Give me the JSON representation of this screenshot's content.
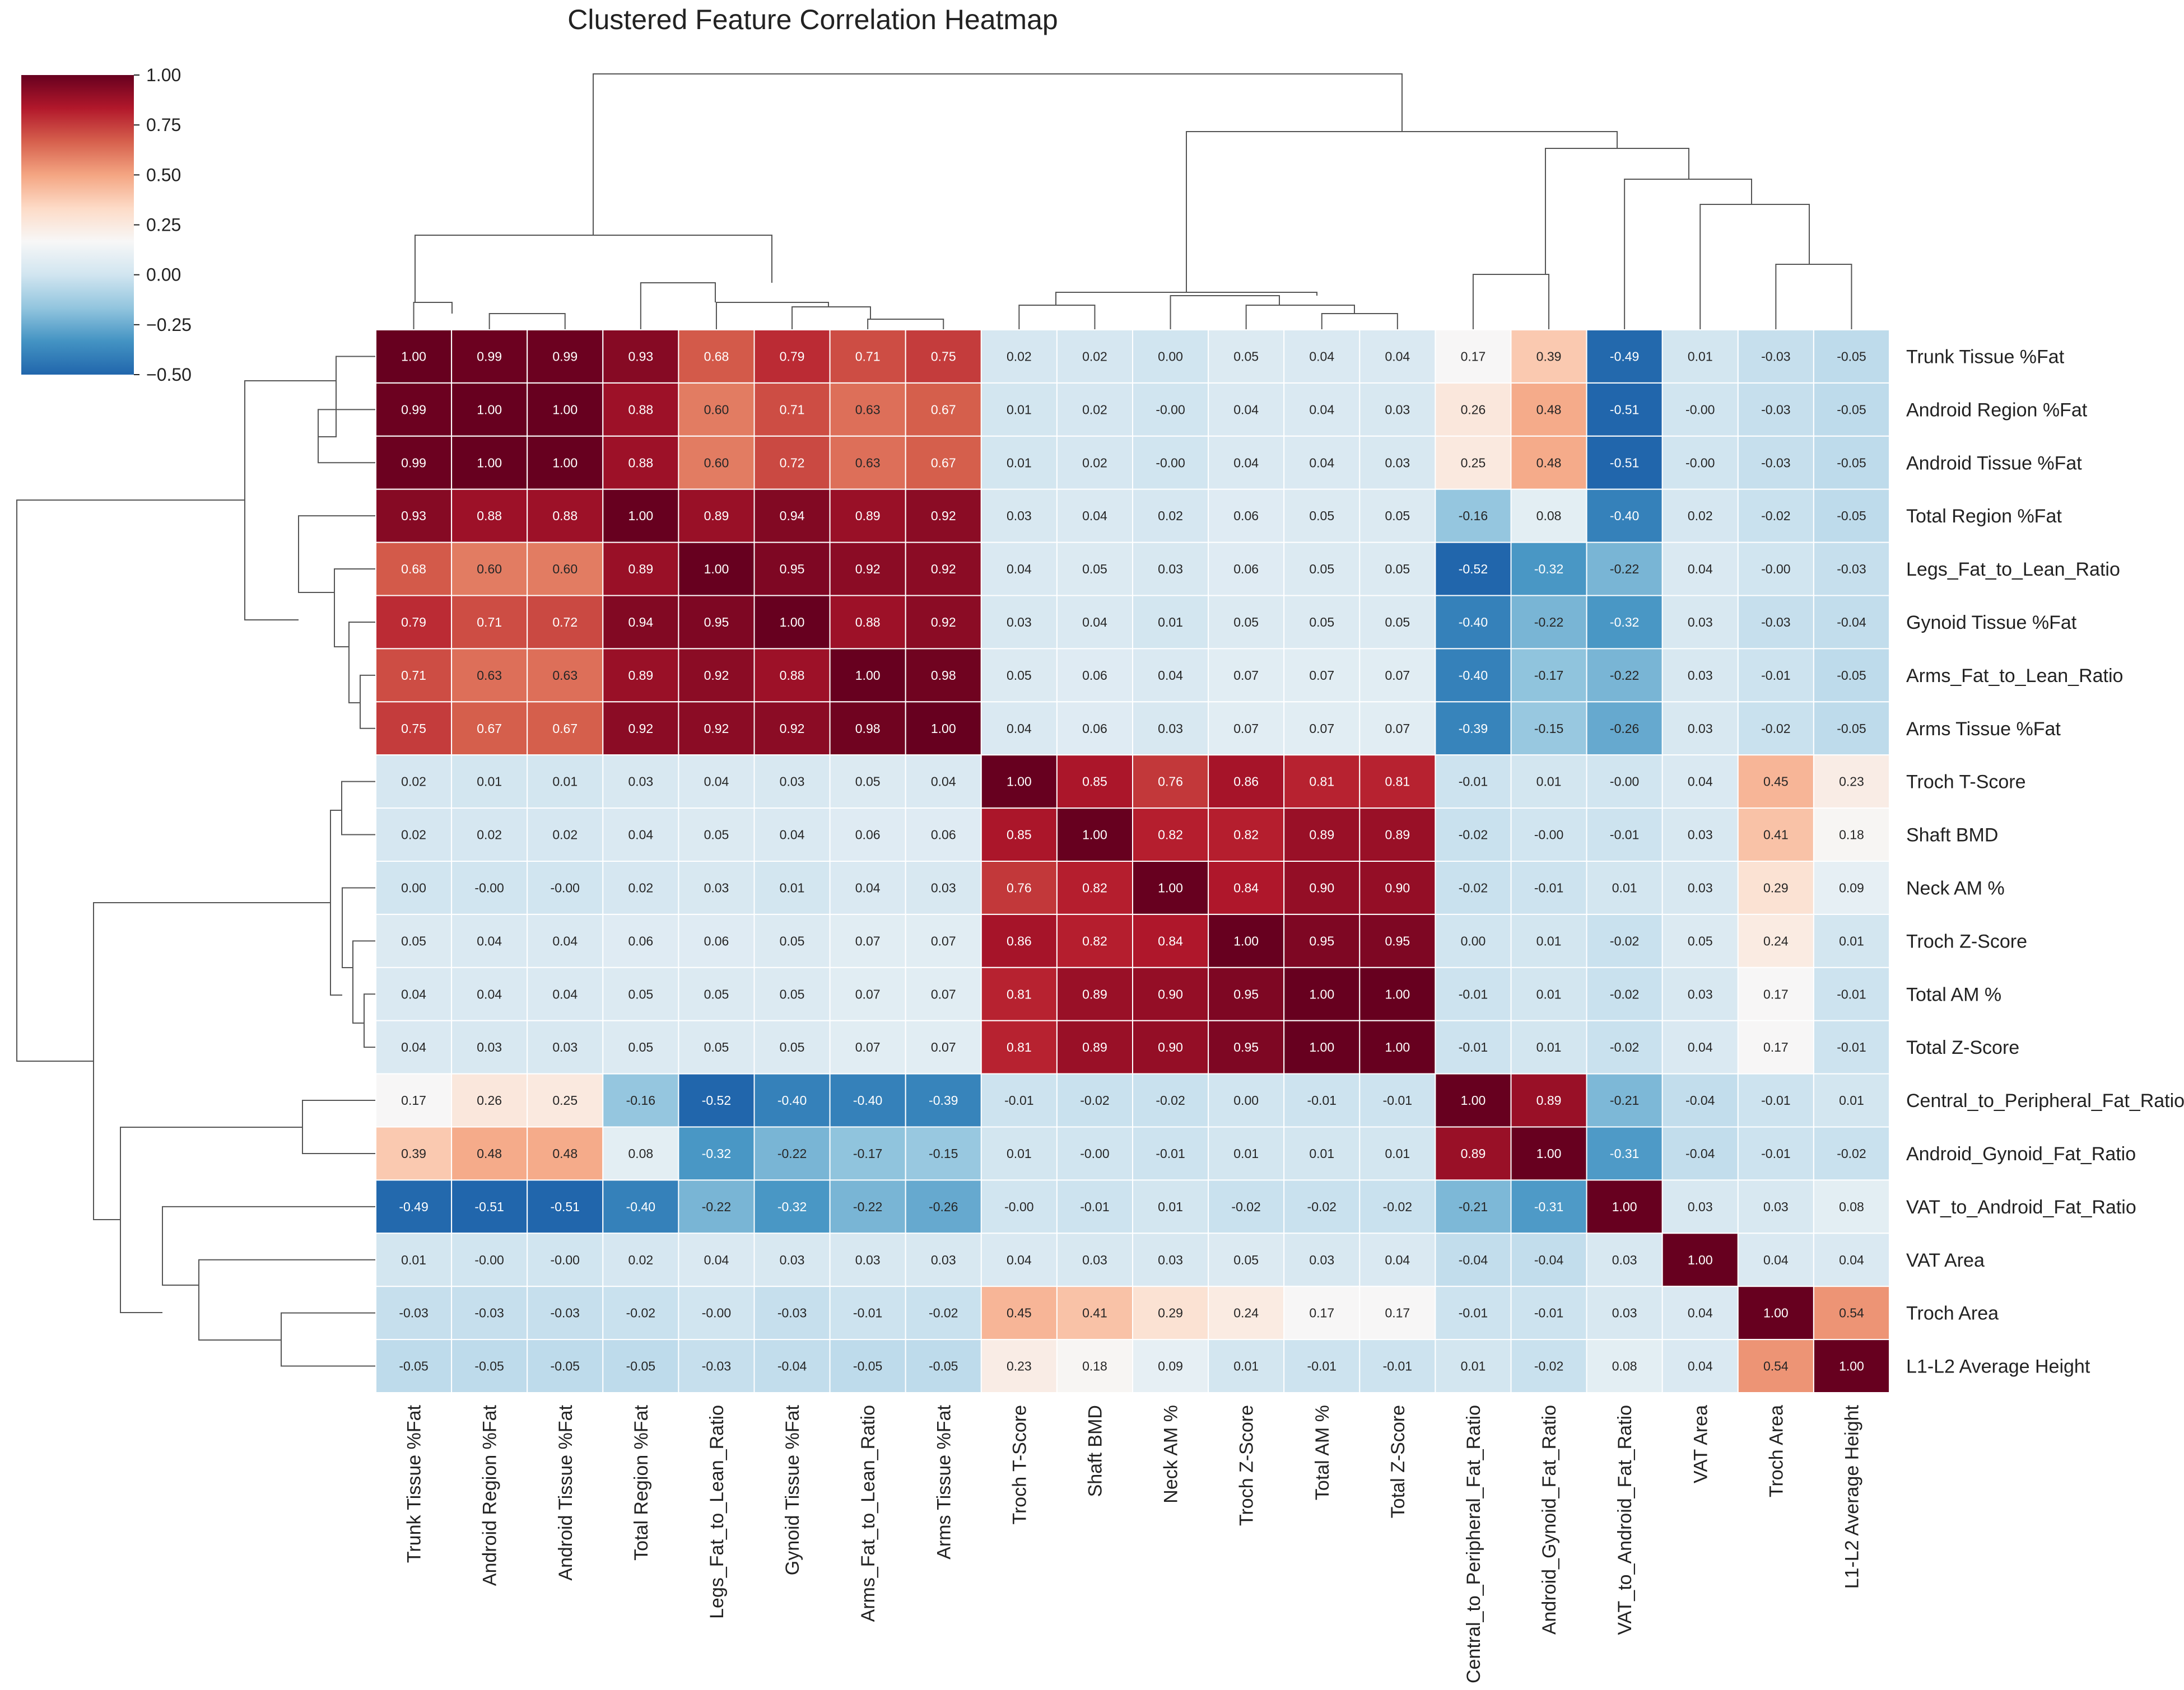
{
  "chart_data": {
    "type": "heatmap",
    "title": "Clustered Feature Correlation Heatmap",
    "features": [
      "Trunk Tissue %Fat",
      "Android Region %Fat",
      "Android Tissue %Fat",
      "Total Region %Fat",
      "Legs_Fat_to_Lean_Ratio",
      "Gynoid Tissue %Fat",
      "Arms_Fat_to_Lean_Ratio",
      "Arms Tissue %Fat",
      "Troch T-Score",
      "Shaft BMD",
      "Neck AM %",
      "Troch Z-Score",
      "Total AM %",
      "Total Z-Score",
      "Central_to_Peripheral_Fat_Ratio",
      "Android_Gynoid_Fat_Ratio",
      "VAT_to_Android_Fat_Ratio",
      "VAT Area",
      "Troch Area",
      "L1-L2 Average Height"
    ],
    "matrix": [
      [
        "1.00",
        "0.99",
        "0.99",
        "0.93",
        "0.68",
        "0.79",
        "0.71",
        "0.75",
        "0.02",
        "0.02",
        "0.00",
        "0.05",
        "0.04",
        "0.04",
        "0.17",
        "0.39",
        "-0.49",
        "0.01",
        "-0.03",
        "-0.05"
      ],
      [
        "0.99",
        "1.00",
        "1.00",
        "0.88",
        "0.60",
        "0.71",
        "0.63",
        "0.67",
        "0.01",
        "0.02",
        "-0.00",
        "0.04",
        "0.04",
        "0.03",
        "0.26",
        "0.48",
        "-0.51",
        "-0.00",
        "-0.03",
        "-0.05"
      ],
      [
        "0.99",
        "1.00",
        "1.00",
        "0.88",
        "0.60",
        "0.72",
        "0.63",
        "0.67",
        "0.01",
        "0.02",
        "-0.00",
        "0.04",
        "0.04",
        "0.03",
        "0.25",
        "0.48",
        "-0.51",
        "-0.00",
        "-0.03",
        "-0.05"
      ],
      [
        "0.93",
        "0.88",
        "0.88",
        "1.00",
        "0.89",
        "0.94",
        "0.89",
        "0.92",
        "0.03",
        "0.04",
        "0.02",
        "0.06",
        "0.05",
        "0.05",
        "-0.16",
        "0.08",
        "-0.40",
        "0.02",
        "-0.02",
        "-0.05"
      ],
      [
        "0.68",
        "0.60",
        "0.60",
        "0.89",
        "1.00",
        "0.95",
        "0.92",
        "0.92",
        "0.04",
        "0.05",
        "0.03",
        "0.06",
        "0.05",
        "0.05",
        "-0.52",
        "-0.32",
        "-0.22",
        "0.04",
        "-0.00",
        "-0.03"
      ],
      [
        "0.79",
        "0.71",
        "0.72",
        "0.94",
        "0.95",
        "1.00",
        "0.88",
        "0.92",
        "0.03",
        "0.04",
        "0.01",
        "0.05",
        "0.05",
        "0.05",
        "-0.40",
        "-0.22",
        "-0.32",
        "0.03",
        "-0.03",
        "-0.04"
      ],
      [
        "0.71",
        "0.63",
        "0.63",
        "0.89",
        "0.92",
        "0.88",
        "1.00",
        "0.98",
        "0.05",
        "0.06",
        "0.04",
        "0.07",
        "0.07",
        "0.07",
        "-0.40",
        "-0.17",
        "-0.22",
        "0.03",
        "-0.01",
        "-0.05"
      ],
      [
        "0.75",
        "0.67",
        "0.67",
        "0.92",
        "0.92",
        "0.92",
        "0.98",
        "1.00",
        "0.04",
        "0.06",
        "0.03",
        "0.07",
        "0.07",
        "0.07",
        "-0.39",
        "-0.15",
        "-0.26",
        "0.03",
        "-0.02",
        "-0.05"
      ],
      [
        "0.02",
        "0.01",
        "0.01",
        "0.03",
        "0.04",
        "0.03",
        "0.05",
        "0.04",
        "1.00",
        "0.85",
        "0.76",
        "0.86",
        "0.81",
        "0.81",
        "-0.01",
        "0.01",
        "-0.00",
        "0.04",
        "0.45",
        "0.23"
      ],
      [
        "0.02",
        "0.02",
        "0.02",
        "0.04",
        "0.05",
        "0.04",
        "0.06",
        "0.06",
        "0.85",
        "1.00",
        "0.82",
        "0.82",
        "0.89",
        "0.89",
        "-0.02",
        "-0.00",
        "-0.01",
        "0.03",
        "0.41",
        "0.18"
      ],
      [
        "0.00",
        "-0.00",
        "-0.00",
        "0.02",
        "0.03",
        "0.01",
        "0.04",
        "0.03",
        "0.76",
        "0.82",
        "1.00",
        "0.84",
        "0.90",
        "0.90",
        "-0.02",
        "-0.01",
        "0.01",
        "0.03",
        "0.29",
        "0.09"
      ],
      [
        "0.05",
        "0.04",
        "0.04",
        "0.06",
        "0.06",
        "0.05",
        "0.07",
        "0.07",
        "0.86",
        "0.82",
        "0.84",
        "1.00",
        "0.95",
        "0.95",
        "0.00",
        "0.01",
        "-0.02",
        "0.05",
        "0.24",
        "0.01"
      ],
      [
        "0.04",
        "0.04",
        "0.04",
        "0.05",
        "0.05",
        "0.05",
        "0.07",
        "0.07",
        "0.81",
        "0.89",
        "0.90",
        "0.95",
        "1.00",
        "1.00",
        "-0.01",
        "0.01",
        "-0.02",
        "0.03",
        "0.17",
        "-0.01"
      ],
      [
        "0.04",
        "0.03",
        "0.03",
        "0.05",
        "0.05",
        "0.05",
        "0.07",
        "0.07",
        "0.81",
        "0.89",
        "0.90",
        "0.95",
        "1.00",
        "1.00",
        "-0.01",
        "0.01",
        "-0.02",
        "0.04",
        "0.17",
        "-0.01"
      ],
      [
        "0.17",
        "0.26",
        "0.25",
        "-0.16",
        "-0.52",
        "-0.40",
        "-0.40",
        "-0.39",
        "-0.01",
        "-0.02",
        "-0.02",
        "0.00",
        "-0.01",
        "-0.01",
        "1.00",
        "0.89",
        "-0.21",
        "-0.04",
        "-0.01",
        "0.01"
      ],
      [
        "0.39",
        "0.48",
        "0.48",
        "0.08",
        "-0.32",
        "-0.22",
        "-0.17",
        "-0.15",
        "0.01",
        "-0.00",
        "-0.01",
        "0.01",
        "0.01",
        "0.01",
        "0.89",
        "1.00",
        "-0.31",
        "-0.04",
        "-0.01",
        "-0.02"
      ],
      [
        "-0.49",
        "-0.51",
        "-0.51",
        "-0.40",
        "-0.22",
        "-0.32",
        "-0.22",
        "-0.26",
        "-0.00",
        "-0.01",
        "0.01",
        "-0.02",
        "-0.02",
        "-0.02",
        "-0.21",
        "-0.31",
        "1.00",
        "0.03",
        "0.03",
        "0.08"
      ],
      [
        "0.01",
        "-0.00",
        "-0.00",
        "0.02",
        "0.04",
        "0.03",
        "0.03",
        "0.03",
        "0.04",
        "0.03",
        "0.03",
        "0.05",
        "0.03",
        "0.04",
        "-0.04",
        "-0.04",
        "0.03",
        "1.00",
        "0.04",
        "0.04"
      ],
      [
        "-0.03",
        "-0.03",
        "-0.03",
        "-0.02",
        "-0.00",
        "-0.03",
        "-0.01",
        "-0.02",
        "0.45",
        "0.41",
        "0.29",
        "0.24",
        "0.17",
        "0.17",
        "-0.01",
        "-0.01",
        "0.03",
        "0.04",
        "1.00",
        "0.54"
      ],
      [
        "-0.05",
        "-0.05",
        "-0.05",
        "-0.05",
        "-0.03",
        "-0.04",
        "-0.05",
        "-0.05",
        "0.23",
        "0.18",
        "0.09",
        "0.01",
        "-0.01",
        "-0.01",
        "0.01",
        "-0.02",
        "0.08",
        "0.04",
        "0.54",
        "1.00"
      ]
    ],
    "colorbar": {
      "vmin": -0.5,
      "vmax": 1.0,
      "ticks": [
        "1.00",
        "0.75",
        "0.50",
        "0.25",
        "0.00",
        "−0.25",
        "−0.50"
      ],
      "tick_values": [
        1.0,
        0.75,
        0.5,
        0.25,
        0.0,
        -0.25,
        -0.5
      ],
      "colors": [
        "#2166ac",
        "#4393c3",
        "#92c5de",
        "#d1e5f0",
        "#f7f7f7",
        "#fddbc7",
        "#f4a582",
        "#d6604d",
        "#b2182b",
        "#67001f"
      ]
    },
    "dendrogram": {
      "clusters": [
        [
          0,
          1,
          2,
          3,
          4,
          5,
          6,
          7
        ],
        [
          8,
          9,
          10,
          11,
          12,
          13
        ],
        [
          14,
          15,
          16,
          17,
          18,
          19
        ]
      ]
    }
  }
}
